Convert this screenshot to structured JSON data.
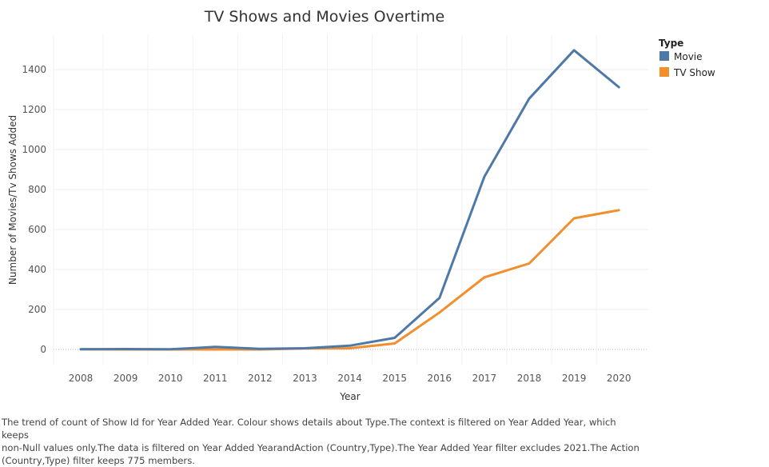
{
  "chart_data": {
    "type": "line",
    "title": "TV Shows and Movies Overtime",
    "xlabel": "Year",
    "ylabel": "Number of Movies/Tv Shows Added",
    "x": [
      "2008",
      "2009",
      "2010",
      "2011",
      "2012",
      "2013",
      "2014",
      "2015",
      "2016",
      "2017",
      "2018",
      "2019",
      "2020"
    ],
    "yticks": [
      0,
      200,
      400,
      600,
      800,
      1000,
      1200,
      1400
    ],
    "ylim": [
      -80,
      1600
    ],
    "series": [
      {
        "name": "Movie",
        "color": "#4e79a7",
        "values": [
          1,
          2,
          1,
          13,
          3,
          6,
          19,
          58,
          258,
          864,
          1255,
          1497,
          1312
        ]
      },
      {
        "name": "TV Show",
        "color": "#f28e2b",
        "values": [
          1,
          0,
          0,
          0,
          0,
          5,
          6,
          30,
          185,
          361,
          430,
          656,
          697
        ]
      }
    ],
    "legend": {
      "title": "Type",
      "position": "right"
    },
    "grid": true
  },
  "caption": {
    "line1": "The trend of count of Show Id for Year Added Year.  Colour shows details about Type.The context is filtered on Year Added Year, which keeps",
    "line2": "non-Null values only.The data is filtered on Year Added YearandAction (Country,Type).The Year Added Year filter excludes 2021.The Action",
    "line3": "(Country,Type) filter keeps 775 members."
  }
}
